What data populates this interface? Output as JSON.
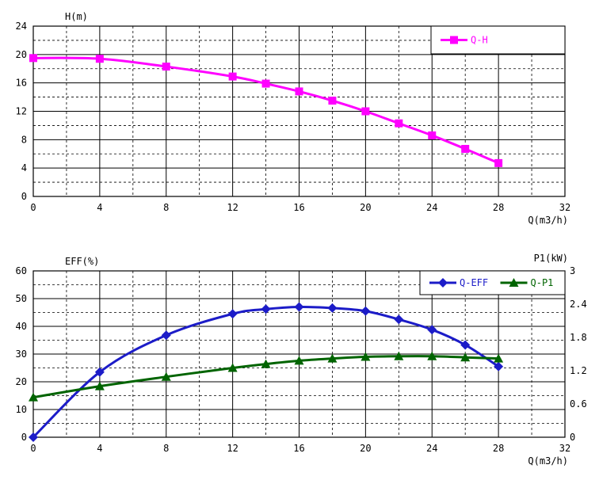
{
  "chart_data": [
    {
      "type": "line",
      "ylabel": "H(m)",
      "xlabel": "Q(m3/h)",
      "xlim": [
        0,
        32
      ],
      "ylim": [
        0,
        24
      ],
      "xticks": [
        "0",
        "4",
        "8",
        "12",
        "16",
        "20",
        "24",
        "28",
        "32"
      ],
      "yticks": [
        "0",
        "4",
        "8",
        "12",
        "16",
        "20",
        "24"
      ],
      "grid": true,
      "legend_position": "top-right",
      "series": [
        {
          "name": "Q-H",
          "color": "#ff00ff",
          "marker": "square",
          "x": [
            0,
            4,
            8,
            12,
            14,
            16,
            18,
            20,
            22,
            24,
            26,
            28
          ],
          "y": [
            19.5,
            19.4,
            18.3,
            16.9,
            15.9,
            14.8,
            13.5,
            12.0,
            10.3,
            8.6,
            6.7,
            4.7
          ]
        }
      ]
    },
    {
      "type": "line",
      "ylabel": "EFF(%)",
      "y2label": "P1(kW)",
      "xlabel": "Q(m3/h)",
      "xlim": [
        0,
        32
      ],
      "ylim": [
        0,
        60
      ],
      "y2lim": [
        0,
        3
      ],
      "xticks": [
        "0",
        "4",
        "8",
        "12",
        "16",
        "20",
        "24",
        "28",
        "32"
      ],
      "yticks": [
        "0",
        "10",
        "20",
        "30",
        "40",
        "50",
        "60"
      ],
      "y2ticks": [
        "0",
        "0.6",
        "1.2",
        "1.8",
        "2.4",
        "3"
      ],
      "grid": true,
      "legend_position": "top-right",
      "series": [
        {
          "name": "Q-EFF",
          "axis": "left",
          "color": "#1c1cc8",
          "marker": "diamond",
          "x": [
            0,
            4,
            8,
            12,
            14,
            16,
            18,
            20,
            22,
            24,
            26,
            28
          ],
          "y": [
            0,
            23.5,
            36.8,
            44.5,
            46.2,
            47.0,
            46.6,
            45.5,
            42.5,
            38.8,
            33.3,
            25.5
          ]
        },
        {
          "name": "Q-P1",
          "axis": "right",
          "color": "#006400",
          "marker": "triangle",
          "x": [
            0,
            4,
            8,
            12,
            14,
            16,
            18,
            20,
            22,
            24,
            26,
            28
          ],
          "y": [
            0.72,
            0.92,
            1.09,
            1.25,
            1.32,
            1.38,
            1.42,
            1.45,
            1.46,
            1.46,
            1.44,
            1.42
          ]
        }
      ]
    }
  ]
}
